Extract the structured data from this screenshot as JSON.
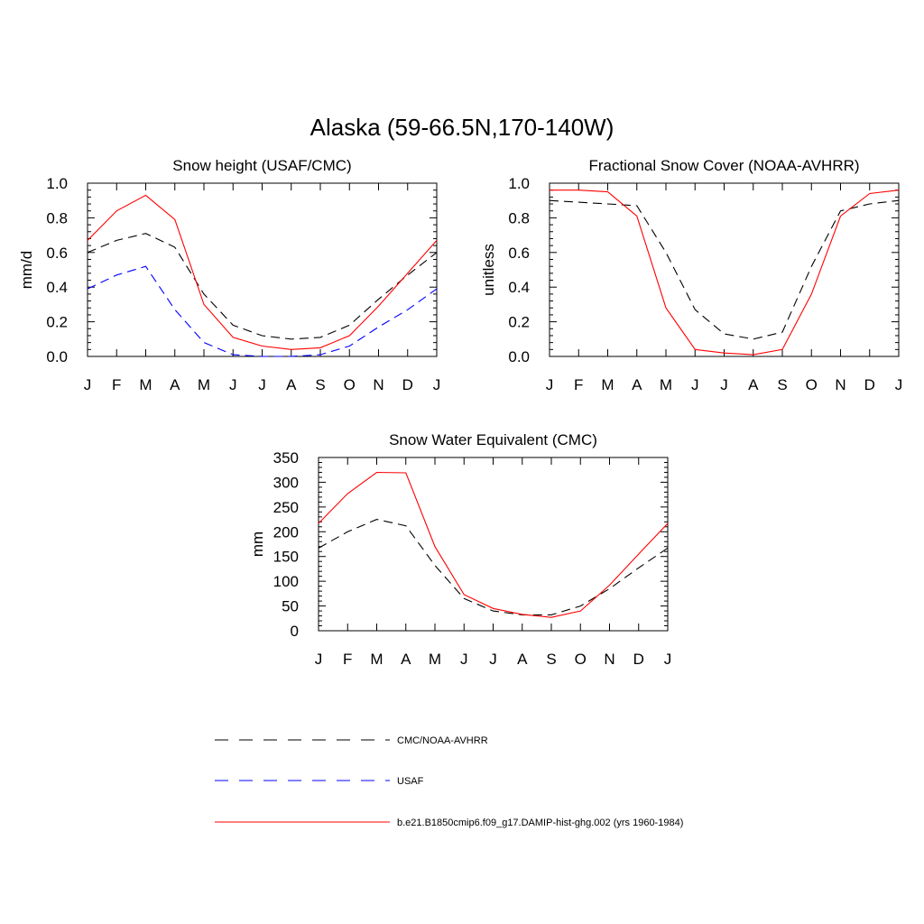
{
  "figure": {
    "title": "Alaska (59-66.5N,170-140W)"
  },
  "colors": {
    "obs": "#000000",
    "usaf": "#0000ff",
    "model": "#ff0000"
  },
  "chart_data": [
    {
      "type": "line",
      "title": "Snow height (USAF/CMC)",
      "ylabel": "mm/d",
      "xlabel": "",
      "categories": [
        "J",
        "F",
        "M",
        "A",
        "M",
        "J",
        "J",
        "A",
        "S",
        "O",
        "N",
        "D",
        "J"
      ],
      "ylim": [
        0,
        1.0
      ],
      "yticks": [
        0.0,
        0.2,
        0.4,
        0.6,
        0.8,
        1.0
      ],
      "ytick_labels": [
        "0.0",
        "0.2",
        "0.4",
        "0.6",
        "0.8",
        "1.0"
      ],
      "series": [
        {
          "name": "CMC/NOAA-AVHRR",
          "style": "dashed",
          "color": "#000000",
          "values": [
            0.6,
            0.67,
            0.71,
            0.63,
            0.36,
            0.18,
            0.12,
            0.1,
            0.11,
            0.18,
            0.33,
            0.47,
            0.6
          ]
        },
        {
          "name": "USAF",
          "style": "dashed",
          "color": "#0000ff",
          "values": [
            0.39,
            0.47,
            0.52,
            0.27,
            0.08,
            0.01,
            0.0,
            0.0,
            0.01,
            0.06,
            0.17,
            0.27,
            0.39
          ]
        },
        {
          "name": "b.e21.B1850cmip6.f09_g17.DAMIP-hist-ghg.002 (yrs 1960-1984)",
          "style": "solid",
          "color": "#ff0000",
          "values": [
            0.67,
            0.84,
            0.93,
            0.79,
            0.3,
            0.11,
            0.06,
            0.04,
            0.05,
            0.12,
            0.29,
            0.48,
            0.67
          ]
        }
      ]
    },
    {
      "type": "line",
      "title": "Fractional Snow Cover (NOAA-AVHRR)",
      "ylabel": "unitless",
      "xlabel": "",
      "categories": [
        "J",
        "F",
        "M",
        "A",
        "M",
        "J",
        "J",
        "A",
        "S",
        "O",
        "N",
        "D",
        "J"
      ],
      "ylim": [
        0,
        1.0
      ],
      "yticks": [
        0.0,
        0.2,
        0.4,
        0.6,
        0.8,
        1.0
      ],
      "ytick_labels": [
        "0.0",
        "0.2",
        "0.4",
        "0.6",
        "0.8",
        "1.0"
      ],
      "series": [
        {
          "name": "CMC/NOAA-AVHRR",
          "style": "dashed",
          "color": "#000000",
          "values": [
            0.9,
            0.89,
            0.88,
            0.87,
            0.6,
            0.27,
            0.13,
            0.1,
            0.14,
            0.52,
            0.84,
            0.88,
            0.9
          ]
        },
        {
          "name": "b.e21.B1850cmip6.f09_g17.DAMIP-hist-ghg.002 (yrs 1960-1984)",
          "style": "solid",
          "color": "#ff0000",
          "values": [
            0.96,
            0.96,
            0.95,
            0.81,
            0.28,
            0.04,
            0.02,
            0.01,
            0.04,
            0.36,
            0.81,
            0.94,
            0.96
          ]
        }
      ]
    },
    {
      "type": "line",
      "title": "Snow Water Equivalent (CMC)",
      "ylabel": "mm",
      "xlabel": "",
      "categories": [
        "J",
        "F",
        "M",
        "A",
        "M",
        "J",
        "J",
        "A",
        "S",
        "O",
        "N",
        "D",
        "J"
      ],
      "ylim": [
        0,
        350
      ],
      "yticks": [
        0,
        50,
        100,
        150,
        200,
        250,
        300,
        350
      ],
      "ytick_labels": [
        "0",
        "50",
        "100",
        "150",
        "200",
        "250",
        "300",
        "350"
      ],
      "series": [
        {
          "name": "CMC/NOAA-AVHRR",
          "style": "dashed",
          "color": "#000000",
          "values": [
            167,
            200,
            225,
            212,
            132,
            65,
            40,
            32,
            32,
            50,
            85,
            127,
            167
          ]
        },
        {
          "name": "b.e21.B1850cmip6.f09_g17.DAMIP-hist-ghg.002 (yrs 1960-1984)",
          "style": "solid",
          "color": "#ff0000",
          "values": [
            217,
            277,
            320,
            319,
            170,
            73,
            45,
            33,
            27,
            40,
            92,
            155,
            217
          ]
        }
      ]
    }
  ],
  "legend": {
    "placement": "bottom-center",
    "items": [
      {
        "label": "CMC/NOAA-AVHRR",
        "style": "dashed",
        "color": "#000000"
      },
      {
        "label": "USAF",
        "style": "dashed",
        "color": "#0000ff"
      },
      {
        "label": "b.e21.B1850cmip6.f09_g17.DAMIP-hist-ghg.002 (yrs 1960-1984)",
        "style": "solid",
        "color": "#ff0000"
      }
    ]
  }
}
